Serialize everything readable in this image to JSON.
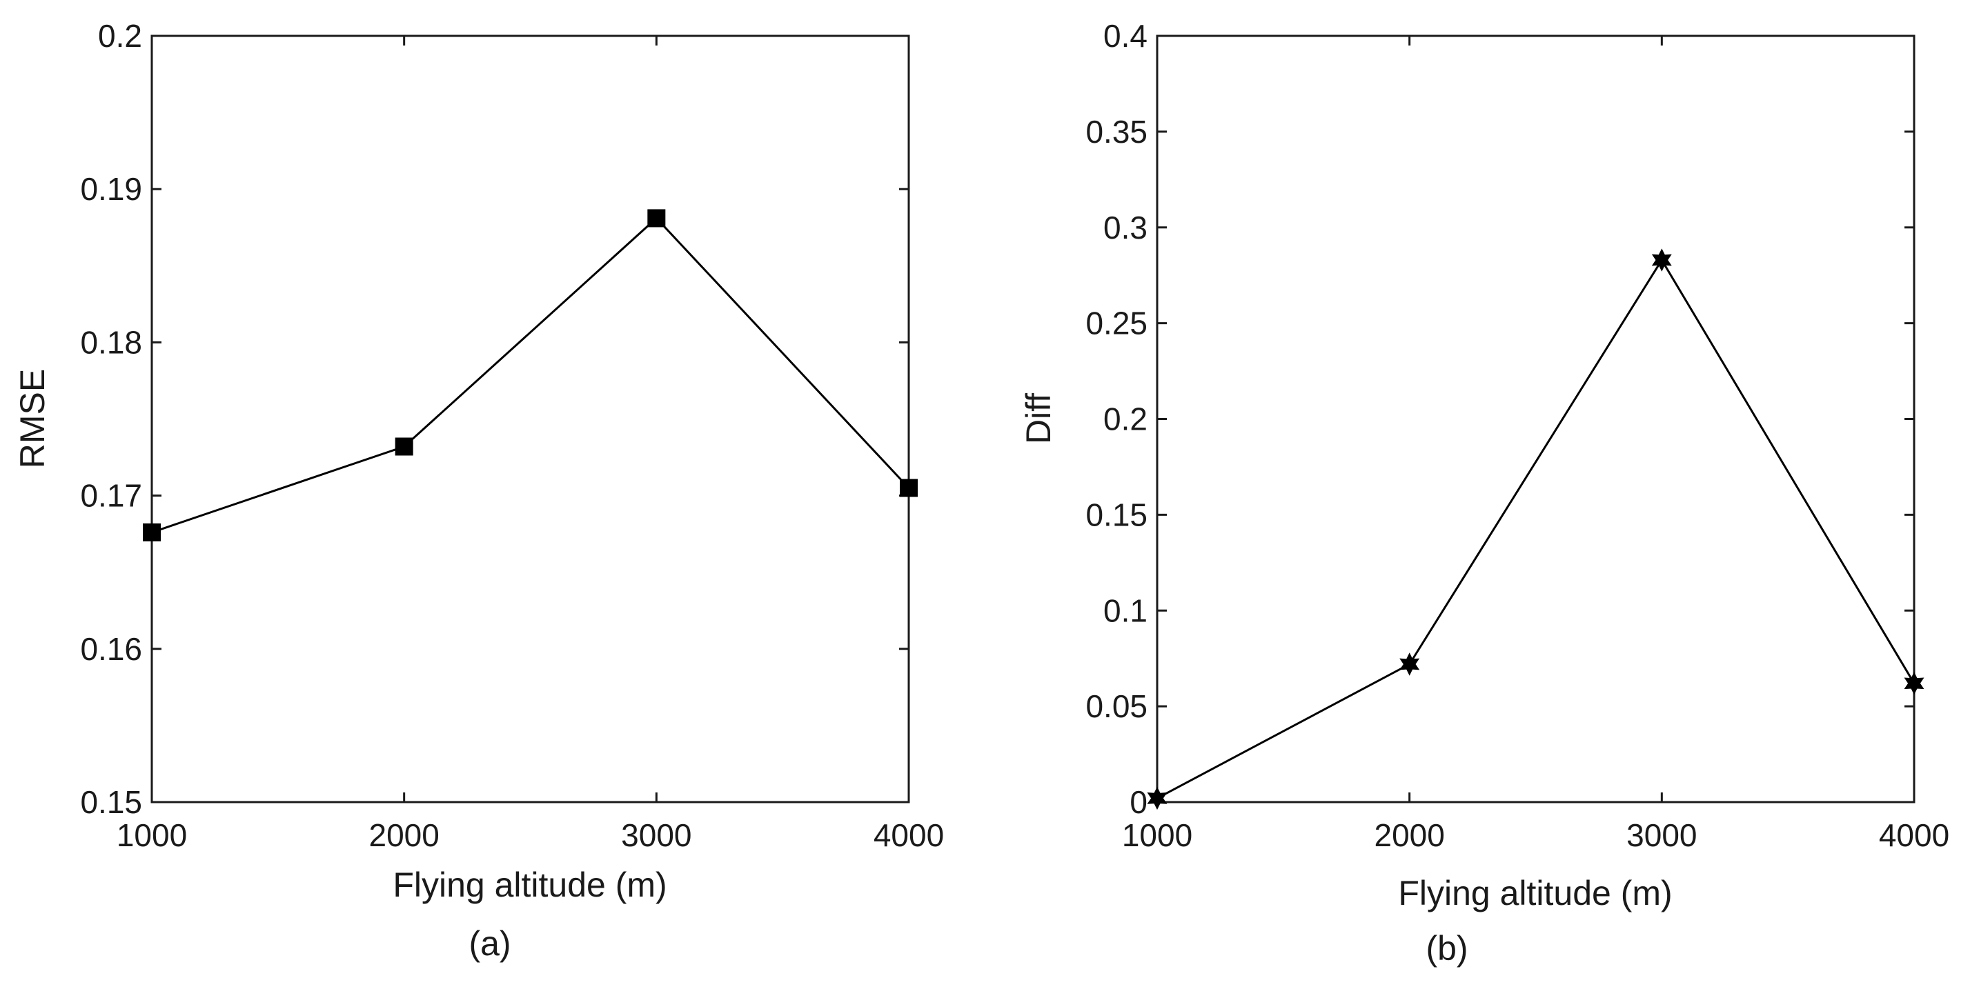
{
  "chart_data": [
    {
      "type": "line",
      "panel_label": "(a)",
      "title": "",
      "xlabel": "Flying altitude (m)",
      "ylabel": "RMSE",
      "xlim": [
        1000,
        4000
      ],
      "ylim": [
        0.15,
        0.2
      ],
      "xticks": [
        1000,
        2000,
        3000,
        4000
      ],
      "xtick_labels": [
        "1000",
        "2000",
        "3000",
        "4000"
      ],
      "yticks": [
        0.15,
        0.16,
        0.17,
        0.18,
        0.19,
        0.2
      ],
      "ytick_labels": [
        "0.15",
        "0.16",
        "0.17",
        "0.18",
        "0.19",
        "0.2"
      ],
      "grid": false,
      "series": [
        {
          "name": "RMSE",
          "marker": "square",
          "color": "#000000",
          "x": [
            1000,
            2000,
            3000,
            4000
          ],
          "y": [
            0.1676,
            0.1732,
            0.1881,
            0.1705
          ]
        }
      ]
    },
    {
      "type": "line",
      "panel_label": "(b)",
      "title": "",
      "xlabel": "Flying altitude (m)",
      "ylabel": "Diff",
      "xlim": [
        1000,
        4000
      ],
      "ylim": [
        0,
        0.4
      ],
      "xticks": [
        1000,
        2000,
        3000,
        4000
      ],
      "xtick_labels": [
        "1000",
        "2000",
        "3000",
        "4000"
      ],
      "yticks": [
        0,
        0.05,
        0.1,
        0.15,
        0.2,
        0.25,
        0.3,
        0.35,
        0.4
      ],
      "ytick_labels": [
        "0",
        "0.05",
        "0.1",
        "0.15",
        "0.2",
        "0.25",
        "0.3",
        "0.35",
        "0.4"
      ],
      "grid": false,
      "series": [
        {
          "name": "Diff",
          "marker": "hexagram",
          "color": "#000000",
          "x": [
            1000,
            2000,
            3000,
            4000
          ],
          "y": [
            0.002,
            0.072,
            0.283,
            0.062
          ]
        }
      ]
    }
  ]
}
